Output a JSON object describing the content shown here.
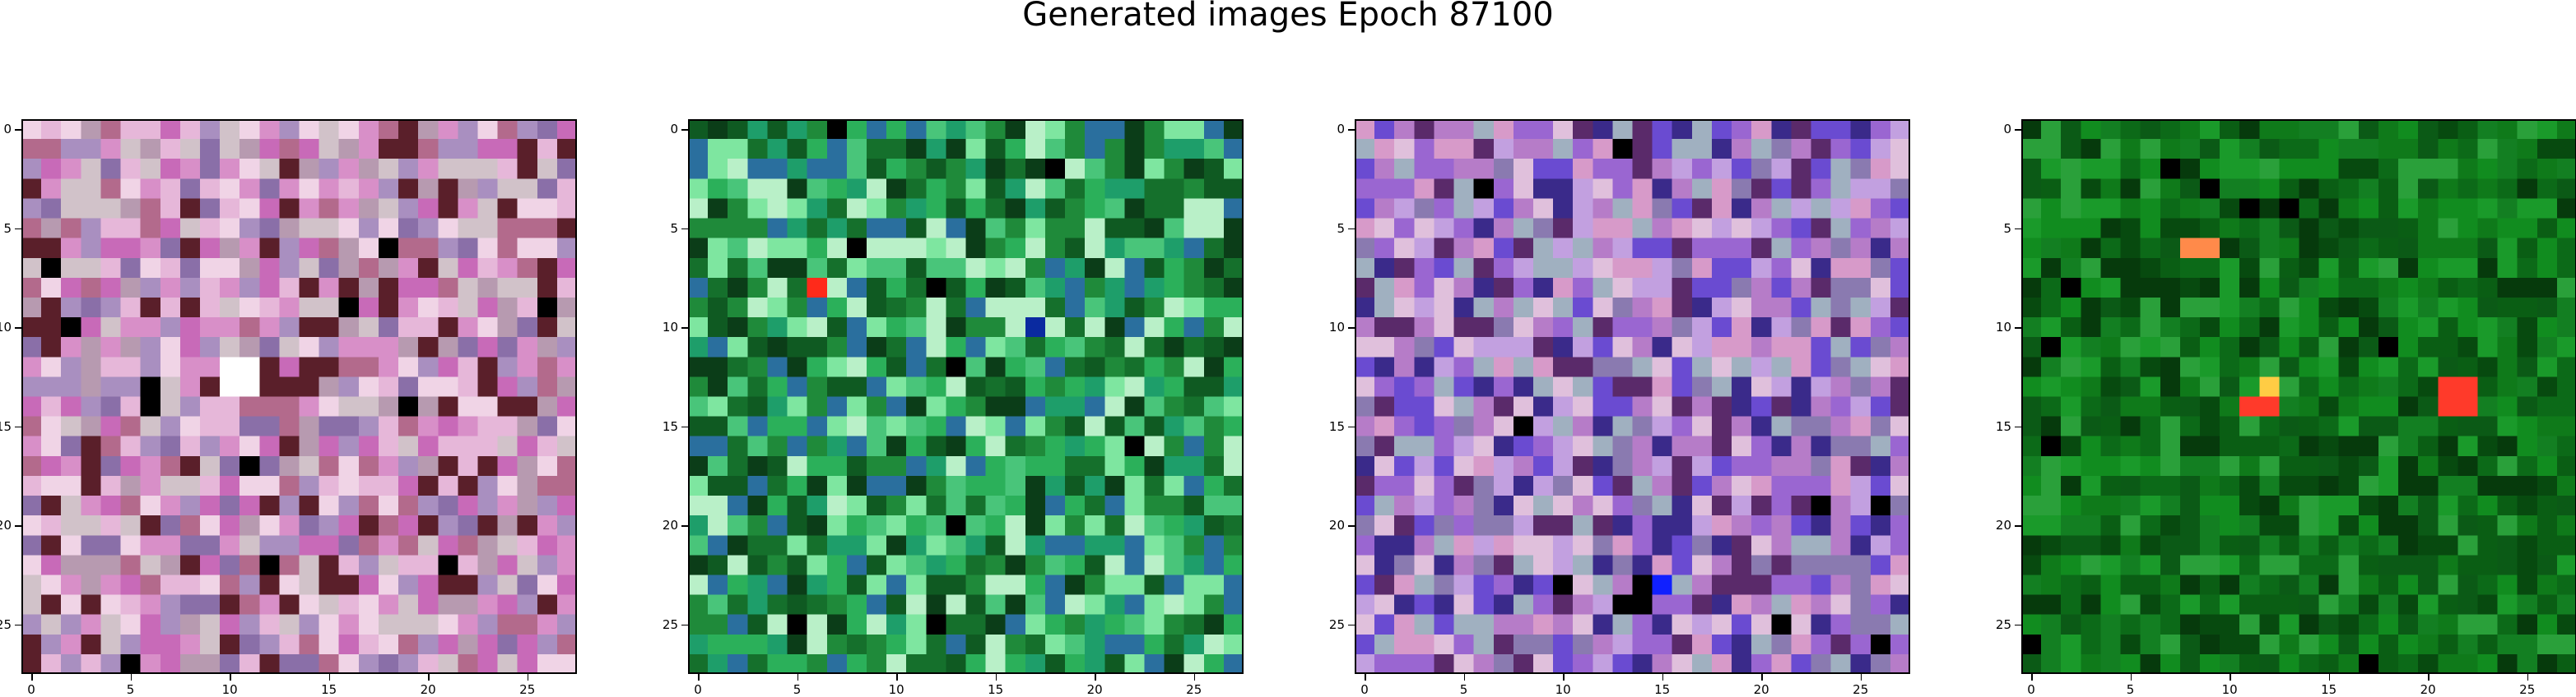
{
  "figure": {
    "title": "Generated images Epoch 87100"
  },
  "axes": {
    "ticks": [
      "0",
      "5",
      "10",
      "15",
      "20",
      "25"
    ],
    "tick_values": [
      0,
      5,
      10,
      15,
      20,
      25
    ],
    "grid_size": 28
  },
  "panels": [
    {
      "name": "image-1",
      "palette": "pink-mixed",
      "colors": [
        "#d88fc8",
        "#c86ab8",
        "#e6b7d9",
        "#b79ab0",
        "#a98fc0",
        "#8a6fa8",
        "#d1c2c9",
        "#f0d4e6",
        "#b36a8c",
        "#5a1f2a"
      ]
    },
    {
      "name": "image-2",
      "palette": "green-mixed",
      "colors": [
        "#1f8a3a",
        "#2bb05a",
        "#15702c",
        "#49c57a",
        "#0f5a22",
        "#7ee6a0",
        "#1e9e6a",
        "#0b3d18",
        "#2a6f9e",
        "#b9f0c8"
      ]
    },
    {
      "name": "image-3",
      "palette": "purple-mixed",
      "colors": [
        "#b67cc8",
        "#9a66d1",
        "#d79ac9",
        "#6a4bd1",
        "#c2a0e0",
        "#8a7ab0",
        "#e0c0dc",
        "#3a2a8a",
        "#a0b0c0",
        "#5a2a6a"
      ]
    },
    {
      "name": "image-4",
      "palette": "green-dark",
      "colors": [
        "#0f7a1a",
        "#0a5e14",
        "#118c1f",
        "#0c6a18",
        "#1a9a2a",
        "#074a0f",
        "#137f22",
        "#0b5a16",
        "#2aa03a",
        "#063a0c"
      ]
    }
  ]
}
